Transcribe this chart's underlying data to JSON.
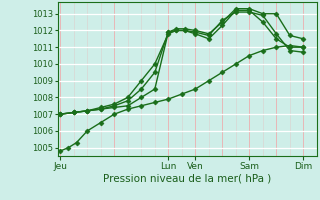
{
  "title": "Pression niveau de la mer( hPa )",
  "bg_color": "#ceeee8",
  "grid_h_color": "#ffffff",
  "grid_v_color": "#e8b8b8",
  "line_color": "#1a6e1a",
  "ylim": [
    1004.5,
    1013.7
  ],
  "yticks": [
    1005,
    1006,
    1007,
    1008,
    1009,
    1010,
    1011,
    1012,
    1013
  ],
  "xlabel_color": "#1a5e1a",
  "day_labels": [
    "Jeu",
    "",
    "Lun",
    "Ven",
    "",
    "Sam",
    "",
    "Dim"
  ],
  "day_positions": [
    0,
    2,
    4,
    5,
    6,
    7,
    8,
    9
  ],
  "vline_positions": [
    0,
    2,
    4,
    5,
    6,
    7,
    8,
    9
  ],
  "xlim": [
    -0.1,
    9.5
  ],
  "series": [
    {
      "x": [
        0,
        0.3,
        0.6,
        1.0,
        1.5,
        2.0,
        2.5,
        3.0,
        3.5,
        4.0,
        4.5,
        5.0,
        5.5,
        6.0,
        6.5,
        7.0,
        7.5,
        8.0,
        8.5,
        9.0
      ],
      "y": [
        1004.8,
        1005.0,
        1005.3,
        1006.0,
        1006.5,
        1007.0,
        1007.3,
        1007.5,
        1007.7,
        1007.9,
        1008.2,
        1008.5,
        1009.0,
        1009.5,
        1010.0,
        1010.5,
        1010.8,
        1011.0,
        1011.1,
        1011.0
      ],
      "marker": "D",
      "markersize": 2.5,
      "linewidth": 1.0
    },
    {
      "x": [
        0,
        0.5,
        1.0,
        1.5,
        2.0,
        2.5,
        3.0,
        3.5,
        4.0,
        4.3,
        4.6,
        5.0,
        5.5,
        6.0,
        6.5,
        7.0,
        7.5,
        8.0,
        8.5,
        9.0
      ],
      "y": [
        1007.0,
        1007.1,
        1007.2,
        1007.3,
        1007.4,
        1007.5,
        1008.0,
        1008.5,
        1011.9,
        1012.0,
        1012.0,
        1011.8,
        1011.5,
        1012.3,
        1013.2,
        1013.2,
        1012.5,
        1011.5,
        1011.0,
        1011.0
      ],
      "marker": "D",
      "markersize": 2.5,
      "linewidth": 1.0
    },
    {
      "x": [
        0,
        0.5,
        1.0,
        1.5,
        2.0,
        2.5,
        3.0,
        3.5,
        4.0,
        4.3,
        4.6,
        5.0,
        5.5,
        6.0,
        6.5,
        7.0,
        7.5,
        8.0,
        8.5,
        9.0
      ],
      "y": [
        1007.0,
        1007.1,
        1007.2,
        1007.3,
        1007.5,
        1007.8,
        1008.5,
        1009.5,
        1011.9,
        1012.1,
        1012.1,
        1012.0,
        1011.8,
        1012.5,
        1013.3,
        1013.3,
        1013.0,
        1013.0,
        1011.7,
        1011.5
      ],
      "marker": "D",
      "markersize": 2.5,
      "linewidth": 1.0
    },
    {
      "x": [
        0,
        0.5,
        1.0,
        1.5,
        2.0,
        2.5,
        3.0,
        3.5,
        4.0,
        4.3,
        4.6,
        5.0,
        5.5,
        6.0,
        6.5,
        7.0,
        7.5,
        8.0,
        8.5,
        9.0
      ],
      "y": [
        1007.0,
        1007.1,
        1007.2,
        1007.4,
        1007.6,
        1008.0,
        1009.0,
        1010.0,
        1011.8,
        1012.0,
        1012.0,
        1011.9,
        1011.7,
        1012.6,
        1013.1,
        1013.1,
        1012.9,
        1011.8,
        1010.8,
        1010.7
      ],
      "marker": "D",
      "markersize": 2.5,
      "linewidth": 1.0
    }
  ],
  "ytick_fontsize": 6,
  "xtick_fontsize": 6.5,
  "xlabel_fontsize": 7.5
}
